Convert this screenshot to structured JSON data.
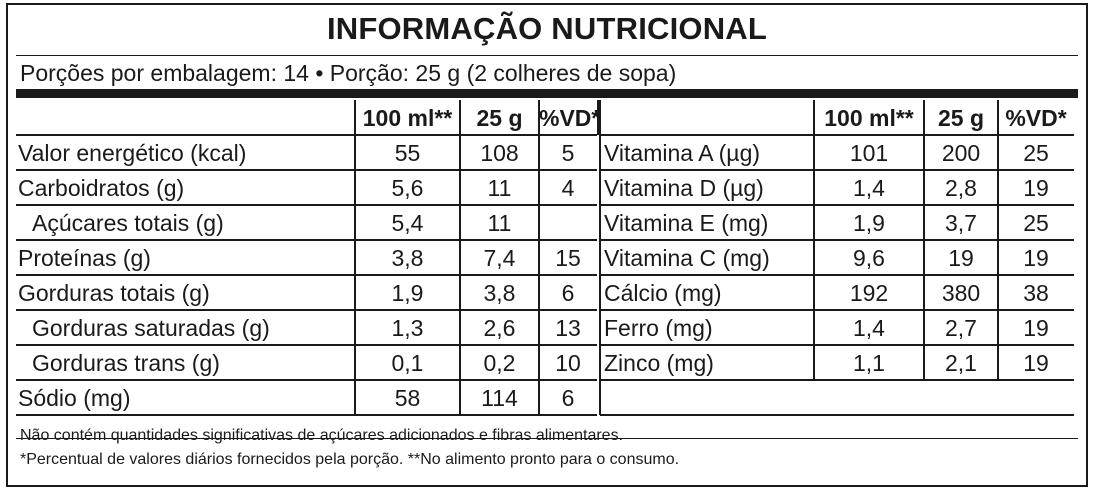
{
  "title": "INFORMAÇÃO NUTRICIONAL",
  "servings": "Porções por embalagem: 14 • Porção: 25 g (2 colheres de sopa)",
  "left_headers": [
    "100 ml**",
    "25 g",
    "%VD*"
  ],
  "right_headers": [
    "100 ml**",
    "25 g",
    "%VD*"
  ],
  "left_rows": [
    {
      "name": "Valor energético (kcal)",
      "v100": "55",
      "v25": "108",
      "vd": "5"
    },
    {
      "name": "Carboidratos (g)",
      "v100": "5,6",
      "v25": "11",
      "vd": "4"
    },
    {
      "name": "Açúcares totais (g)",
      "v100": "5,4",
      "v25": "11",
      "vd": ""
    },
    {
      "name": "Proteínas (g)",
      "v100": "3,8",
      "v25": "7,4",
      "vd": "15"
    },
    {
      "name": "Gorduras totais (g)",
      "v100": "1,9",
      "v25": "3,8",
      "vd": "6"
    },
    {
      "name": "Gorduras saturadas (g)",
      "v100": "1,3",
      "v25": "2,6",
      "vd": "13"
    },
    {
      "name": "Gorduras trans (g)",
      "v100": "0,1",
      "v25": "0,2",
      "vd": "10"
    },
    {
      "name": "Sódio (mg)",
      "v100": "58",
      "v25": "114",
      "vd": "6"
    }
  ],
  "right_rows": [
    {
      "name": "Vitamina A (µg)",
      "v100": "101",
      "v25": "200",
      "vd": "25"
    },
    {
      "name": "Vitamina D (µg)",
      "v100": "1,4",
      "v25": "2,8",
      "vd": "19"
    },
    {
      "name": "Vitamina E (mg)",
      "v100": "1,9",
      "v25": "3,7",
      "vd": "25"
    },
    {
      "name": "Vitamina C (mg)",
      "v100": "9,6",
      "v25": "19",
      "vd": "19"
    },
    {
      "name": "Cálcio (mg)",
      "v100": "192",
      "v25": "380",
      "vd": "38"
    },
    {
      "name": "Ferro (mg)",
      "v100": "1,4",
      "v25": "2,7",
      "vd": "19"
    },
    {
      "name": "Zinco (mg)",
      "v100": "1,1",
      "v25": "2,1",
      "vd": "19"
    }
  ],
  "footnotes": [
    "Não contém quantidades significativas de açúcares adicionados e fibras alimentares.",
    "*Percentual de valores diários fornecidos pela porção. **No alimento pronto para o consumo."
  ]
}
